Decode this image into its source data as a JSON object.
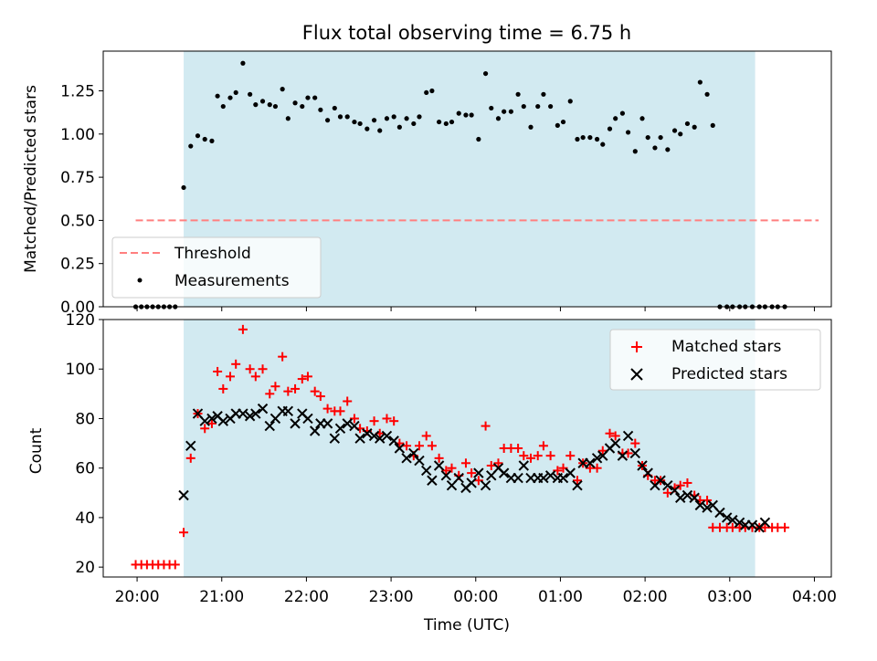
{
  "chart_data": [
    {
      "type": "scatter",
      "title": "Flux total observing time = 6.75 h",
      "xlabel": "",
      "ylabel": "Matched/Predicted stars",
      "xlim": [
        "19:36",
        "04:12"
      ],
      "ylim": [
        0,
        1.48
      ],
      "yticks": [
        "0.00",
        "0.25",
        "0.50",
        "0.75",
        "1.00",
        "1.25"
      ],
      "shaded_span": [
        "20:33",
        "03:18"
      ],
      "legend_position": "lower-left",
      "legend": [
        {
          "label": "Threshold",
          "style": "dashed-line",
          "color": "#ff7f7f"
        },
        {
          "label": "Measurements",
          "style": "dot",
          "color": "#000000"
        }
      ],
      "threshold": {
        "value": 0.5,
        "x_range": [
          "19:59",
          "04:03"
        ],
        "color": "#ff7f7f"
      },
      "series": [
        {
          "name": "Measurements",
          "color": "#000000",
          "x": [
            "19:59",
            "20:03",
            "20:07",
            "20:11",
            "20:15",
            "20:19",
            "20:23",
            "20:27",
            "20:33",
            "20:38",
            "20:43",
            "20:48",
            "20:53",
            "20:57",
            "21:01",
            "21:06",
            "21:10",
            "21:15",
            "21:20",
            "21:24",
            "21:29",
            "21:34",
            "21:38",
            "21:43",
            "21:47",
            "21:52",
            "21:57",
            "22:01",
            "22:06",
            "22:10",
            "22:15",
            "22:20",
            "22:24",
            "22:29",
            "22:34",
            "22:38",
            "22:43",
            "22:48",
            "22:52",
            "22:57",
            "23:02",
            "23:06",
            "23:11",
            "23:16",
            "23:20",
            "23:25",
            "23:29",
            "23:34",
            "23:39",
            "23:43",
            "23:48",
            "23:53",
            "23:57",
            "00:02",
            "00:07",
            "00:11",
            "00:16",
            "00:20",
            "00:25",
            "00:30",
            "00:34",
            "00:39",
            "00:44",
            "00:48",
            "00:53",
            "00:58",
            "01:02",
            "01:07",
            "01:12",
            "01:16",
            "01:21",
            "01:26",
            "01:30",
            "01:35",
            "01:39",
            "01:44",
            "01:48",
            "01:53",
            "01:58",
            "02:02",
            "02:07",
            "02:11",
            "02:16",
            "02:21",
            "02:25",
            "02:30",
            "02:35",
            "02:39",
            "02:44",
            "02:48",
            "02:53",
            "02:58",
            "03:02",
            "03:07",
            "03:11",
            "03:16",
            "03:21",
            "03:25",
            "03:30",
            "03:34",
            "03:39"
          ],
          "y": [
            0,
            0,
            0,
            0,
            0,
            0,
            0,
            0,
            0.69,
            0.93,
            0.99,
            0.97,
            0.96,
            1.22,
            1.16,
            1.21,
            1.24,
            1.41,
            1.23,
            1.17,
            1.19,
            1.17,
            1.16,
            1.26,
            1.09,
            1.18,
            1.16,
            1.21,
            1.21,
            1.14,
            1.08,
            1.15,
            1.1,
            1.1,
            1.07,
            1.06,
            1.03,
            1.08,
            1.02,
            1.09,
            1.1,
            1.04,
            1.09,
            1.06,
            1.1,
            1.24,
            1.25,
            1.07,
            1.06,
            1.07,
            1.12,
            1.11,
            1.11,
            0.97,
            1.35,
            1.15,
            1.09,
            1.13,
            1.13,
            1.23,
            1.16,
            1.04,
            1.16,
            1.23,
            1.16,
            1.05,
            1.07,
            1.19,
            0.97,
            0.98,
            0.98,
            0.97,
            0.94,
            1.03,
            1.09,
            1.12,
            1.01,
            0.9,
            1.09,
            0.98,
            0.92,
            0.98,
            0.91,
            1.02,
            1.0,
            1.06,
            1.04,
            1.3,
            1.23,
            1.05,
            0,
            0,
            0,
            0,
            0,
            0,
            0,
            0,
            0,
            0,
            0
          ]
        }
      ]
    },
    {
      "type": "scatter",
      "title": "",
      "xlabel": "Time (UTC)",
      "ylabel": "Count",
      "xlim": [
        "19:36",
        "04:12"
      ],
      "xticks": [
        "20:00",
        "21:00",
        "22:00",
        "23:00",
        "00:00",
        "01:00",
        "02:00",
        "03:00",
        "04:00"
      ],
      "ylim": [
        16,
        120
      ],
      "yticks": [
        "20",
        "40",
        "60",
        "80",
        "100",
        "120"
      ],
      "shaded_span": [
        "20:33",
        "03:18"
      ],
      "legend_position": "upper-right",
      "series": [
        {
          "name": "Matched stars",
          "marker": "plus",
          "color": "#ff0000",
          "x": [
            "19:59",
            "20:03",
            "20:07",
            "20:11",
            "20:15",
            "20:19",
            "20:23",
            "20:27",
            "20:33",
            "20:38",
            "20:43",
            "20:48",
            "20:53",
            "20:57",
            "21:01",
            "21:06",
            "21:10",
            "21:15",
            "21:20",
            "21:24",
            "21:29",
            "21:34",
            "21:38",
            "21:43",
            "21:47",
            "21:52",
            "21:57",
            "22:01",
            "22:06",
            "22:10",
            "22:15",
            "22:20",
            "22:24",
            "22:29",
            "22:34",
            "22:38",
            "22:43",
            "22:48",
            "22:52",
            "22:57",
            "23:02",
            "23:06",
            "23:11",
            "23:16",
            "23:20",
            "23:25",
            "23:29",
            "23:34",
            "23:39",
            "23:43",
            "23:48",
            "23:53",
            "23:57",
            "00:02",
            "00:07",
            "00:11",
            "00:16",
            "00:20",
            "00:25",
            "00:30",
            "00:34",
            "00:39",
            "00:44",
            "00:48",
            "00:53",
            "00:58",
            "01:02",
            "01:07",
            "01:12",
            "01:16",
            "01:21",
            "01:26",
            "01:30",
            "01:35",
            "01:39",
            "01:44",
            "01:48",
            "01:53",
            "01:58",
            "02:02",
            "02:07",
            "02:11",
            "02:16",
            "02:21",
            "02:25",
            "02:30",
            "02:35",
            "02:39",
            "02:44",
            "02:48",
            "02:53",
            "02:58",
            "03:02",
            "03:07",
            "03:11",
            "03:16",
            "03:21",
            "03:25",
            "03:30",
            "03:34",
            "03:39"
          ],
          "y": [
            21,
            21,
            21,
            21,
            21,
            21,
            21,
            21,
            34,
            64,
            82,
            76,
            78,
            99,
            92,
            97,
            102,
            116,
            100,
            97,
            100,
            90,
            93,
            105,
            91,
            92,
            96,
            97,
            91,
            89,
            84,
            83,
            83,
            87,
            80,
            76,
            75,
            79,
            74,
            80,
            79,
            70,
            69,
            65,
            69,
            73,
            69,
            64,
            59,
            60,
            57,
            62,
            58,
            55,
            77,
            61,
            62,
            68,
            68,
            68,
            65,
            64,
            65,
            69,
            65,
            59,
            60,
            65,
            55,
            62,
            60,
            60,
            67,
            74,
            73,
            66,
            66,
            70,
            61,
            57,
            55,
            55,
            50,
            52,
            53,
            54,
            49,
            47,
            47,
            36,
            36,
            36,
            36,
            36,
            36,
            36,
            36,
            36,
            36,
            36,
            36
          ]
        },
        {
          "name": "Predicted stars",
          "marker": "x",
          "color": "#000000",
          "x": [
            "20:33",
            "20:38",
            "20:43",
            "20:48",
            "20:53",
            "20:57",
            "21:01",
            "21:06",
            "21:10",
            "21:15",
            "21:20",
            "21:24",
            "21:29",
            "21:34",
            "21:38",
            "21:43",
            "21:47",
            "21:52",
            "21:57",
            "22:01",
            "22:06",
            "22:10",
            "22:15",
            "22:20",
            "22:24",
            "22:29",
            "22:34",
            "22:38",
            "22:43",
            "22:48",
            "22:52",
            "22:57",
            "23:02",
            "23:06",
            "23:11",
            "23:16",
            "23:20",
            "23:25",
            "23:29",
            "23:34",
            "23:39",
            "23:43",
            "23:48",
            "23:53",
            "23:57",
            "00:02",
            "00:07",
            "00:11",
            "00:16",
            "00:20",
            "00:25",
            "00:30",
            "00:34",
            "00:39",
            "00:44",
            "00:48",
            "00:53",
            "00:58",
            "01:02",
            "01:07",
            "01:12",
            "01:16",
            "01:21",
            "01:26",
            "01:30",
            "01:35",
            "01:39",
            "01:44",
            "01:48",
            "01:53",
            "01:58",
            "02:02",
            "02:07",
            "02:11",
            "02:16",
            "02:21",
            "02:25",
            "02:30",
            "02:35",
            "02:39",
            "02:44",
            "02:48",
            "02:53",
            "02:58",
            "03:02",
            "03:07",
            "03:11",
            "03:16",
            "03:21",
            "03:25"
          ],
          "y": [
            49,
            69,
            82,
            79,
            80,
            81,
            79,
            80,
            82,
            82,
            81,
            82,
            84,
            77,
            80,
            83,
            83,
            78,
            82,
            80,
            75,
            78,
            78,
            72,
            76,
            78,
            77,
            72,
            74,
            73,
            72,
            73,
            71,
            68,
            64,
            66,
            63,
            59,
            55,
            61,
            57,
            53,
            56,
            52,
            54,
            58,
            53,
            57,
            60,
            58,
            56,
            56,
            61,
            56,
            56,
            56,
            57,
            56,
            56,
            58,
            53,
            62,
            62,
            64,
            65,
            68,
            70,
            65,
            73,
            66,
            61,
            58,
            53,
            55,
            53,
            51,
            48,
            49,
            48,
            45,
            44,
            45,
            42,
            40,
            39,
            38,
            37,
            37,
            36,
            38
          ]
        }
      ]
    }
  ]
}
